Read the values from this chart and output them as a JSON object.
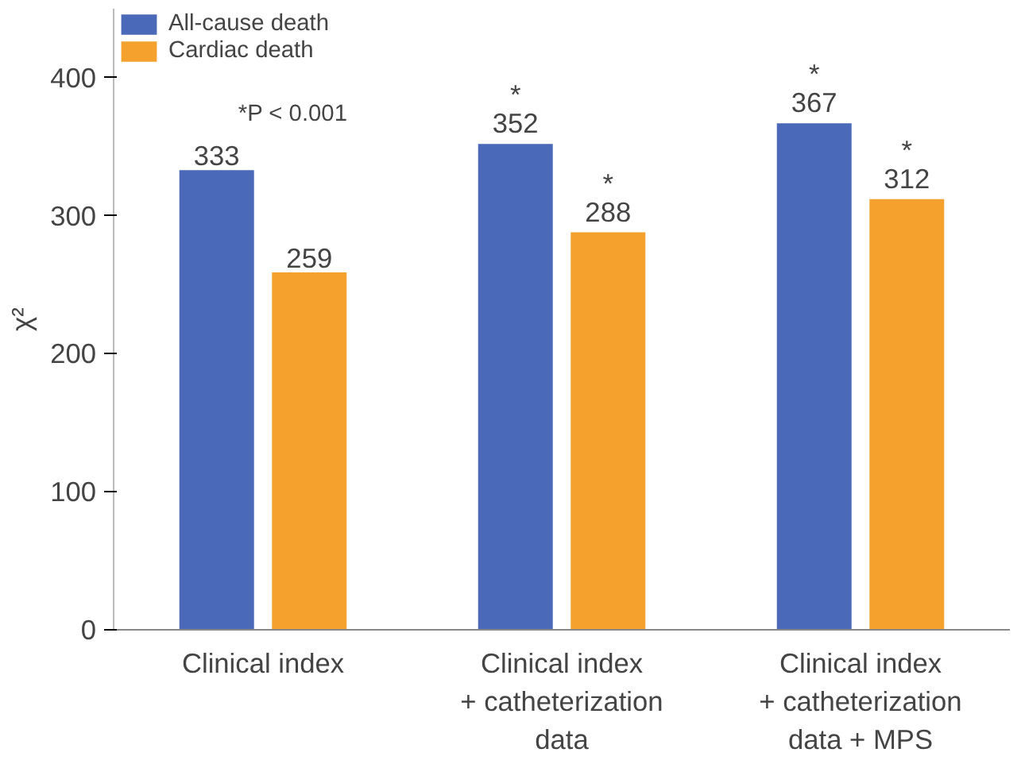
{
  "chart_data": {
    "type": "bar",
    "ylabel": "χ²",
    "categories": [
      "Clinical index",
      "Clinical index\n+ catheterization\ndata",
      "Clinical index\n+ catheterization\ndata + MPS"
    ],
    "series": [
      {
        "name": "All-cause death",
        "color": "#4a69b9",
        "values": [
          333,
          352,
          367
        ],
        "value_labels": [
          "333",
          "*\n352",
          "*\n367"
        ]
      },
      {
        "name": "Cardiac death",
        "color": "#f5a12e",
        "values": [
          259,
          288,
          312
        ],
        "value_labels": [
          "259",
          "*\n288",
          "*\n312"
        ]
      }
    ],
    "annotations": [
      "*P < 0.001"
    ],
    "ylim": [
      0,
      450
    ],
    "yticks": [
      0,
      100,
      200,
      300,
      400
    ],
    "grid": false,
    "legend": "top left"
  }
}
